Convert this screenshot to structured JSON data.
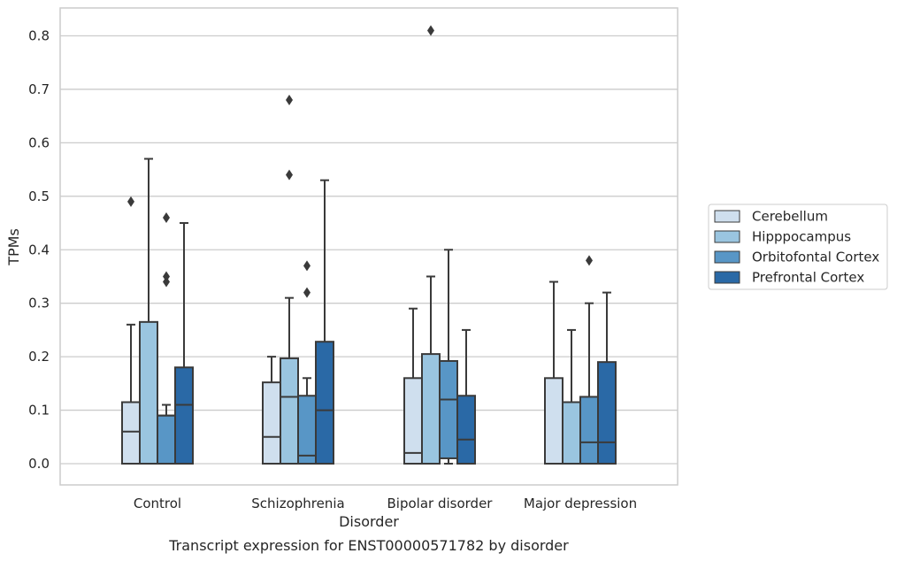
{
  "chart_data": {
    "type": "boxplot",
    "title": "",
    "caption": "Transcript expression for ENST00000571782 by disorder",
    "xlabel": "Disorder",
    "ylabel": "TPMs",
    "ylim": [
      -0.04,
      0.855
    ],
    "yticks": [
      "0.0",
      "0.1",
      "0.2",
      "0.3",
      "0.4",
      "0.5",
      "0.6",
      "0.7",
      "0.8"
    ],
    "grid": true,
    "legend_position": "right",
    "categories": [
      "Control",
      "Schizophrenia",
      "Bipolar disorder",
      "Major depression"
    ],
    "series": [
      {
        "name": "Cerebellum",
        "color": "#cfdfee",
        "boxes": [
          {
            "min": 0.0,
            "q1": 0.0,
            "median": 0.06,
            "q3": 0.115,
            "max": 0.26,
            "outliers": [
              0.49
            ]
          },
          {
            "min": 0.0,
            "q1": 0.0,
            "median": 0.05,
            "q3": 0.152,
            "max": 0.2,
            "outliers": []
          },
          {
            "min": 0.0,
            "q1": 0.0,
            "median": 0.02,
            "q3": 0.16,
            "max": 0.29,
            "outliers": []
          },
          {
            "min": 0.0,
            "q1": 0.0,
            "median": 0.0,
            "q3": 0.16,
            "max": 0.34,
            "outliers": []
          }
        ]
      },
      {
        "name": "Hipppocampus",
        "color": "#9ac5e0",
        "boxes": [
          {
            "min": 0.0,
            "q1": 0.0,
            "median": 0.0,
            "q3": 0.265,
            "max": 0.57,
            "outliers": []
          },
          {
            "min": 0.0,
            "q1": 0.0,
            "median": 0.125,
            "q3": 0.197,
            "max": 0.31,
            "outliers": [
              0.54,
              0.68
            ]
          },
          {
            "min": 0.0,
            "q1": 0.0,
            "median": 0.0,
            "q3": 0.205,
            "max": 0.35,
            "outliers": [
              0.81
            ]
          },
          {
            "min": 0.0,
            "q1": 0.0,
            "median": 0.0,
            "q3": 0.115,
            "max": 0.25,
            "outliers": []
          }
        ]
      },
      {
        "name": "Orbitofontal Cortex",
        "color": "#5896c6",
        "boxes": [
          {
            "min": 0.0,
            "q1": 0.0,
            "median": 0.09,
            "q3": 0.09,
            "max": 0.11,
            "outliers": [
              0.34,
              0.35,
              0.46
            ]
          },
          {
            "min": 0.0,
            "q1": 0.0,
            "median": 0.015,
            "q3": 0.127,
            "max": 0.16,
            "outliers": [
              0.32,
              0.37
            ]
          },
          {
            "min": 0.0,
            "q1": 0.01,
            "median": 0.12,
            "q3": 0.192,
            "max": 0.4,
            "outliers": []
          },
          {
            "min": 0.0,
            "q1": 0.0,
            "median": 0.04,
            "q3": 0.125,
            "max": 0.3,
            "outliers": [
              0.38
            ]
          }
        ]
      },
      {
        "name": "Prefrontal Cortex",
        "color": "#2a69a6",
        "boxes": [
          {
            "min": 0.0,
            "q1": 0.0,
            "median": 0.11,
            "q3": 0.18,
            "max": 0.45,
            "outliers": []
          },
          {
            "min": 0.0,
            "q1": 0.0,
            "median": 0.1,
            "q3": 0.228,
            "max": 0.53,
            "outliers": []
          },
          {
            "min": 0.0,
            "q1": 0.0,
            "median": 0.045,
            "q3": 0.127,
            "max": 0.25,
            "outliers": []
          },
          {
            "min": 0.0,
            "q1": 0.0,
            "median": 0.04,
            "q3": 0.19,
            "max": 0.32,
            "outliers": []
          }
        ]
      }
    ]
  }
}
